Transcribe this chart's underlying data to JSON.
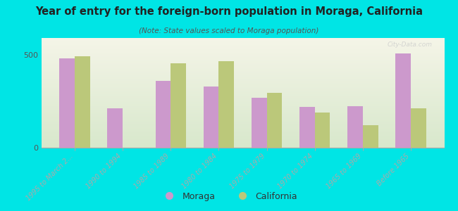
{
  "title": "Year of entry for the foreign-born population in Moraga, California",
  "subtitle": "(Note: State values scaled to Moraga population)",
  "categories": [
    "1995 to March 2...",
    "1990 to 1994",
    "1985 to 1989",
    "1980 to 1984",
    "1975 to 1979",
    "1970 to 1974",
    "1965 to 1969",
    "Before 1965"
  ],
  "moraga_values": [
    480,
    210,
    360,
    330,
    270,
    220,
    225,
    505
  ],
  "california_values": [
    493,
    0,
    455,
    465,
    295,
    190,
    120,
    210
  ],
  "moraga_color": "#cc99cc",
  "california_color": "#bbc87a",
  "background_color": "#00e5e5",
  "plot_bg_top": "#f5f5e8",
  "plot_bg_bottom": "#d8e8cc",
  "ytick_values": [
    0,
    500
  ],
  "ylim": [
    0,
    590
  ],
  "bar_width": 0.32,
  "legend_moraga": "Moraga",
  "legend_california": "California",
  "watermark": "City-Data.com"
}
